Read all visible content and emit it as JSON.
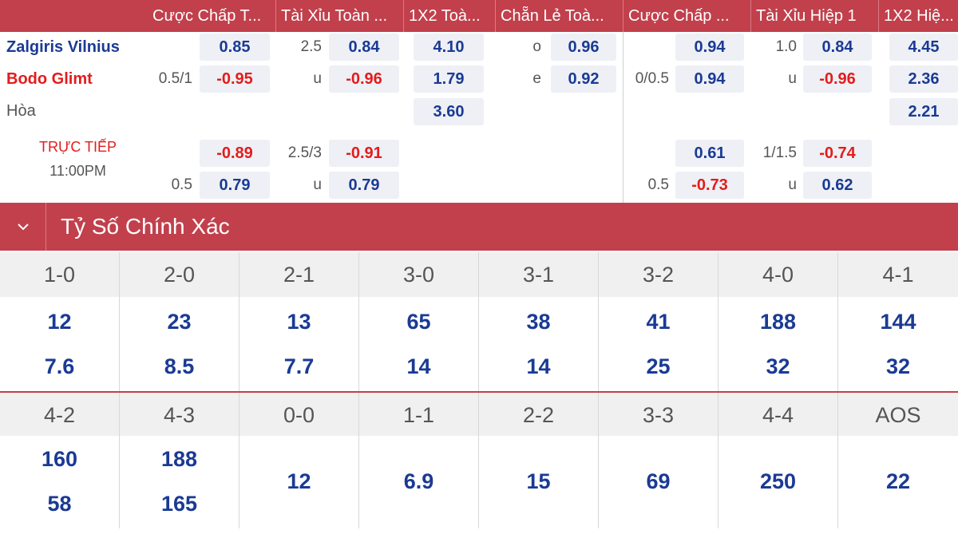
{
  "header": {
    "columns": [
      "Cược Chấp T...",
      "Tài Xỉu Toàn ...",
      "1X2 Toà...",
      "Chẵn Lẻ Toà...",
      "Cược Chấp ...",
      "Tài Xỉu Hiệp 1",
      "1X2 Hiệ..."
    ]
  },
  "match": {
    "home": "Zalgiris Vilnius",
    "away": "Bodo Glimt",
    "draw": "Hòa",
    "live_label": "TRỰC TIẾP",
    "time": "11:00PM"
  },
  "odds": {
    "ft_handicap": {
      "line": "0.5/1",
      "home": "0.85",
      "away": "-0.95"
    },
    "ft_overunder": {
      "line": "2.5",
      "over": "0.84",
      "under_label": "u",
      "under": "-0.96"
    },
    "ft_1x2": {
      "home": "4.10",
      "away": "1.79",
      "draw": "3.60"
    },
    "ft_oddeven": {
      "odd_label": "o",
      "odd": "0.96",
      "even_label": "e",
      "even": "0.92"
    },
    "h1_handicap": {
      "line": "0/0.5",
      "home": "0.94",
      "away": "0.94"
    },
    "h1_overunder": {
      "line": "1.0",
      "over": "0.84",
      "under_label": "u",
      "under": "-0.96"
    },
    "h1_1x2": {
      "home": "4.45",
      "away": "2.36",
      "draw": "2.21"
    },
    "alt_ft_handicap": {
      "line": "0.5",
      "home": "-0.89",
      "away": "0.79"
    },
    "alt_ft_overunder": {
      "line": "2.5/3",
      "over": "-0.91",
      "under_label": "u",
      "under": "0.79"
    },
    "alt_h1_handicap": {
      "line": "0.5",
      "home": "0.61",
      "away": "-0.73"
    },
    "alt_h1_overunder": {
      "line": "1/1.5",
      "over": "-0.74",
      "under_label": "u",
      "under": "0.62"
    }
  },
  "correct_score": {
    "title": "Tỷ Số Chính Xác",
    "row1": [
      {
        "score": "1-0",
        "home": "12",
        "away": "7.6"
      },
      {
        "score": "2-0",
        "home": "23",
        "away": "8.5"
      },
      {
        "score": "2-1",
        "home": "13",
        "away": "7.7"
      },
      {
        "score": "3-0",
        "home": "65",
        "away": "14"
      },
      {
        "score": "3-1",
        "home": "38",
        "away": "14"
      },
      {
        "score": "3-2",
        "home": "41",
        "away": "25"
      },
      {
        "score": "4-0",
        "home": "188",
        "away": "32"
      },
      {
        "score": "4-1",
        "home": "144",
        "away": "32"
      }
    ],
    "row2": [
      {
        "score": "4-2",
        "home": "160",
        "away": "58"
      },
      {
        "score": "4-3",
        "home": "188",
        "away": "165"
      },
      {
        "score": "0-0",
        "single": "12"
      },
      {
        "score": "1-1",
        "single": "6.9"
      },
      {
        "score": "2-2",
        "single": "15"
      },
      {
        "score": "3-3",
        "single": "69"
      },
      {
        "score": "4-4",
        "single": "250"
      },
      {
        "score": "AOS",
        "single": "22"
      }
    ]
  },
  "colors": {
    "brand_red": "#c1404c",
    "odds_blue": "#1a3a94",
    "odds_negative": "#e31c1c",
    "cell_bg": "#eef0f5"
  },
  "icons": {
    "section_toggle": "chevron-down-icon"
  }
}
